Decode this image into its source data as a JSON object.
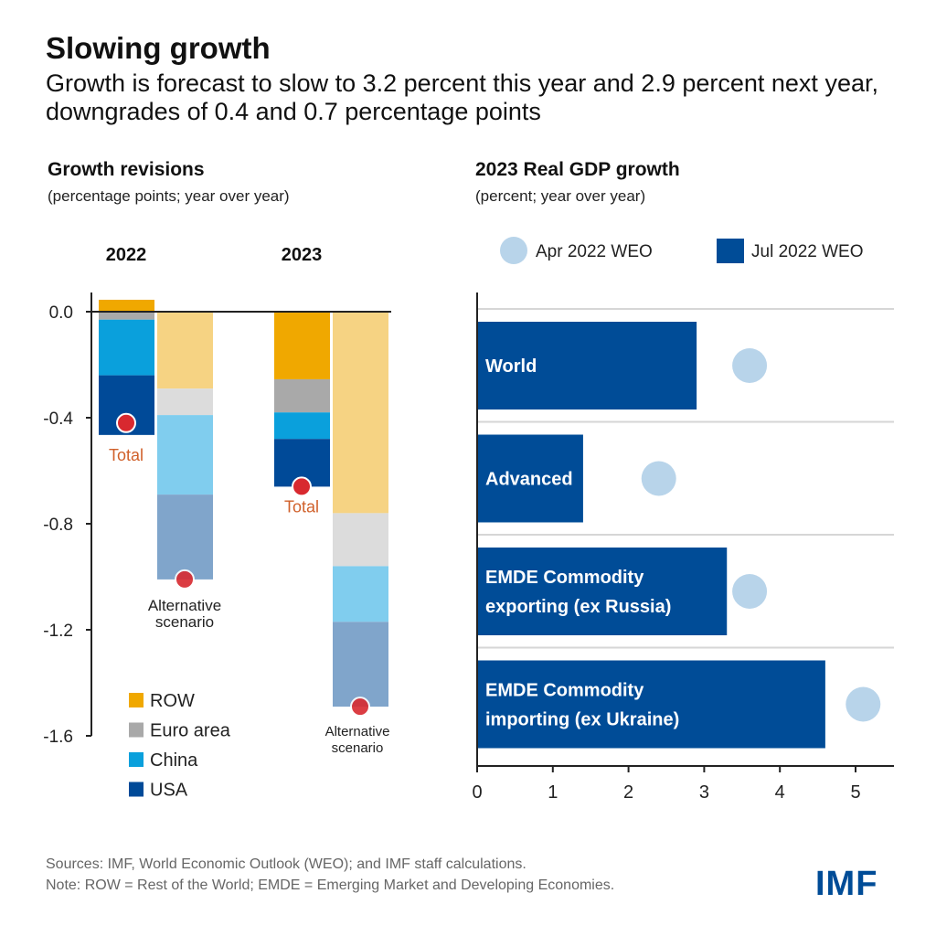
{
  "header": {
    "title": "Slowing growth",
    "subtitle": "Growth is forecast to slow to 3.2 percent this year and 2.9 percent next year, downgrades of 0.4 and 0.7 percentage points"
  },
  "chart_data": [
    {
      "type": "bar",
      "stacked": true,
      "title": "Growth revisions",
      "subtitle": "(percentage points; year over year)",
      "categories": [
        "2022",
        "2023"
      ],
      "ylim": [
        -1.6,
        0.05
      ],
      "yticks": [
        "0.0",
        "-0.4",
        "-0.8",
        "-1.2",
        "-1.6"
      ],
      "ytick_values": [
        0,
        -0.4,
        -0.8,
        -1.2,
        -1.6
      ],
      "grid": false,
      "legend_position": "bottom-left",
      "series": [
        {
          "name": "ROW",
          "color": "#f0a800",
          "alt_color": "#f6d383",
          "baseline": [
            0.045,
            -0.255
          ],
          "alternative": [
            -0.29,
            -0.76
          ]
        },
        {
          "name": "Euro area",
          "color": "#a9a9a9",
          "alt_color": "#dcdcdc",
          "baseline": [
            -0.03,
            -0.125
          ],
          "alternative": [
            -0.1,
            -0.2
          ]
        },
        {
          "name": "China",
          "color": "#0aa0dc",
          "alt_color": "#80cdee",
          "baseline": [
            -0.21,
            -0.1
          ],
          "alternative": [
            -0.3,
            -0.21
          ]
        },
        {
          "name": "USA",
          "color": "#004a98",
          "alt_color": "#80a5cb",
          "baseline": [
            -0.225,
            -0.18
          ],
          "alternative": [
            -0.32,
            -0.32
          ]
        }
      ],
      "totals": {
        "label": "Total",
        "values": [
          -0.42,
          -0.66
        ],
        "color": "#d0602a"
      },
      "alternative_totals": {
        "label_lines": [
          "Alternative",
          "scenario"
        ],
        "values": [
          -1.01,
          -1.49
        ]
      },
      "dot_color": "#d8292f"
    },
    {
      "type": "bar",
      "orientation": "horizontal",
      "title": "2023 Real GDP growth",
      "subtitle": "(percent; year over year)",
      "categories": [
        [
          "World"
        ],
        [
          "Advanced"
        ],
        [
          "EMDE Commodity",
          "exporting (ex Russia)"
        ],
        [
          "EMDE Commodity",
          "importing (ex Ukraine)"
        ]
      ],
      "xlim": [
        0,
        5.5
      ],
      "xticks": [
        "0",
        "1",
        "2",
        "3",
        "4",
        "5"
      ],
      "xtick_values": [
        0,
        1,
        2,
        3,
        4,
        5
      ],
      "grid": true,
      "legend_position": "top",
      "series": [
        {
          "name": "Apr 2022 WEO",
          "mark": "dot",
          "color": "#b8d4ea",
          "values": [
            3.6,
            2.4,
            3.6,
            5.1
          ]
        },
        {
          "name": "Jul 2022 WEO",
          "mark": "bar",
          "color": "#004c97",
          "values": [
            2.9,
            1.4,
            3.3,
            4.6
          ]
        }
      ]
    }
  ],
  "footer": {
    "sources": "Sources: IMF, World Economic Outlook (WEO); and IMF staff calculations.",
    "note": "Note: ROW = Rest of the World; EMDE = Emerging Market and Developing Economies."
  },
  "logo": "IMF"
}
